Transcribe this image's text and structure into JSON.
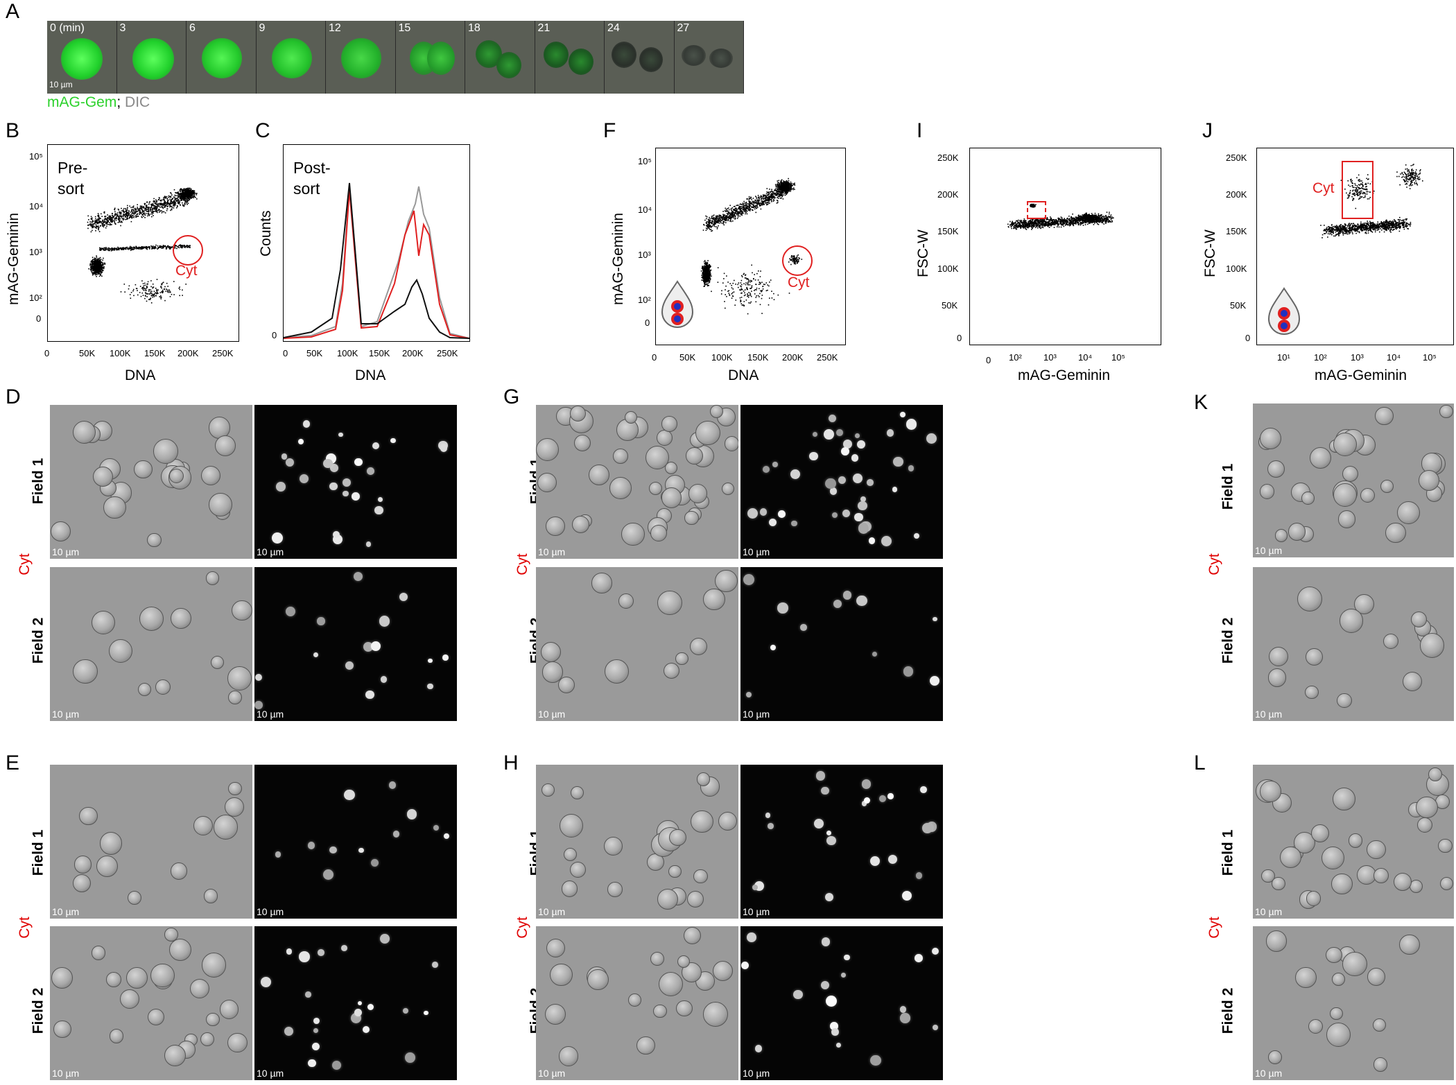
{
  "panels": {
    "A": "A",
    "B": "B",
    "C": "C",
    "D": "D",
    "E": "E",
    "F": "F",
    "G": "G",
    "H": "H",
    "I": "I",
    "J": "J",
    "K": "K",
    "L": "L"
  },
  "timelapse": {
    "times": [
      "0 (min)",
      "3",
      "6",
      "9",
      "12",
      "15",
      "18",
      "21",
      "24",
      "27"
    ],
    "scale_bar": "10 µm",
    "caption_green": "mAG-Gem",
    "caption_sep": ";",
    "caption_gray": " DIC"
  },
  "plots": {
    "B": {
      "title_line1": "Pre-",
      "title_line2": "sort",
      "ylabel": "mAG-Geminin",
      "xlabel": "DNA",
      "yticks": [
        "10⁵",
        "10⁴",
        "10³",
        "10²",
        "0"
      ],
      "xticks": [
        "0",
        "50K",
        "100K",
        "150K",
        "200K",
        "250K"
      ],
      "gate_label": "Cyt"
    },
    "C": {
      "title_line1": "Post-",
      "title_line2": "sort",
      "ylabel": "Counts",
      "xlabel": "DNA",
      "yticks": [
        "0"
      ],
      "xticks": [
        "0",
        "50K",
        "100K",
        "150K",
        "200K",
        "250K"
      ]
    },
    "F": {
      "ylabel": "mAG-Geminin",
      "xlabel": "DNA",
      "yticks": [
        "10⁵",
        "10⁴",
        "10³",
        "10²",
        "0"
      ],
      "xticks": [
        "0",
        "50K",
        "100K",
        "150K",
        "200K",
        "250K"
      ],
      "gate_label": "Cyt"
    },
    "I": {
      "ylabel": "FSC-W",
      "xlabel": "mAG-Geminin",
      "yticks": [
        "250K",
        "200K",
        "150K",
        "100K",
        "50K",
        "0"
      ],
      "xticks": [
        "0",
        "10²",
        "10³",
        "10⁴",
        "10⁵"
      ]
    },
    "J": {
      "ylabel": "FSC-W",
      "xlabel": "mAG-Geminin",
      "yticks": [
        "250K",
        "200K",
        "150K",
        "100K",
        "50K",
        "0"
      ],
      "xticks": [
        "10¹",
        "10²",
        "10³",
        "10⁴",
        "10⁵"
      ],
      "gate_label": "Cyt"
    }
  },
  "micrographs": {
    "scale_bar": "10 µm",
    "field1": "Field 1",
    "field2": "Field 2",
    "cyt": "Cyt"
  },
  "colors": {
    "gfp_green": "#2bd12b",
    "gate_red": "#e02020",
    "dic_gray": "#9a9a9a",
    "fluor_black": "#050505"
  }
}
